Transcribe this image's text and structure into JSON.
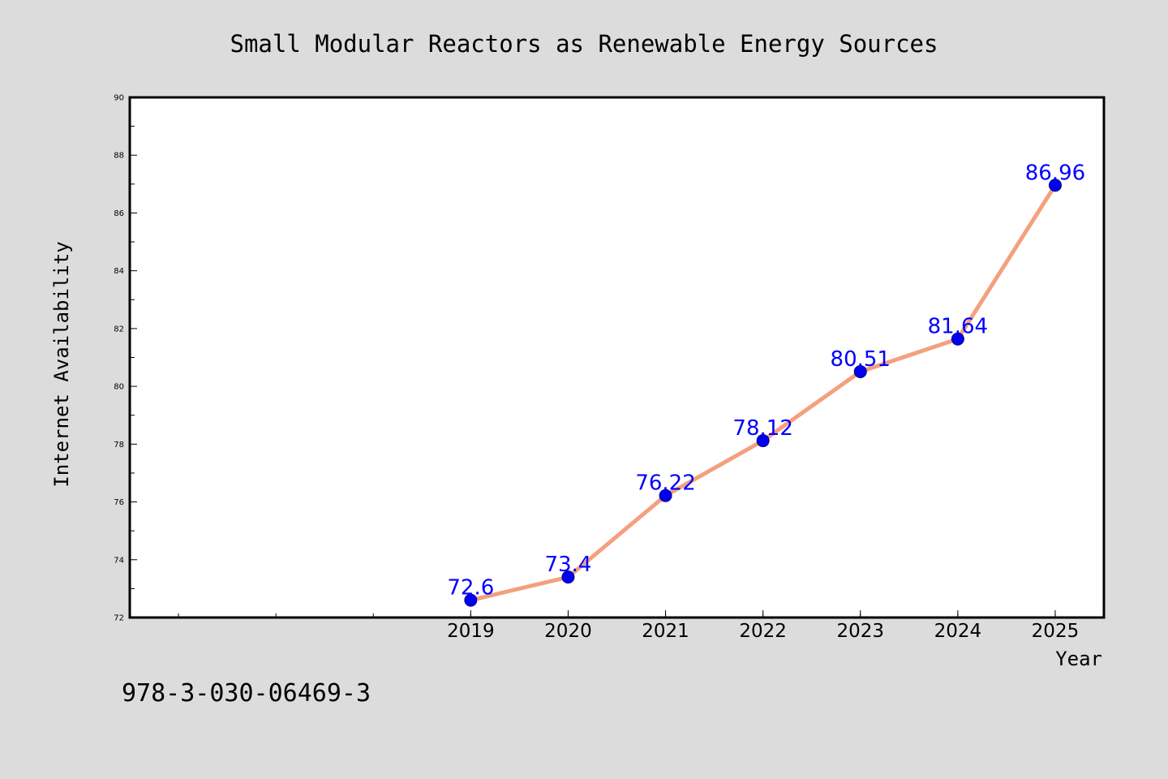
{
  "chart_data": {
    "type": "line",
    "title": "Small Modular Reactors as Renewable Energy Sources",
    "xlabel": "Year",
    "ylabel": "Internet Availability",
    "x": [
      2019,
      2020,
      2021,
      2022,
      2023,
      2024,
      2025
    ],
    "xtick_labels": [
      "2019",
      "2020",
      "2021",
      "2022",
      "2023",
      "2024",
      "2025"
    ],
    "xlim": [
      2015.5,
      2025.5
    ],
    "ylim": [
      72,
      90
    ],
    "yticks": [
      72,
      74,
      76,
      78,
      80,
      82,
      84,
      86,
      88,
      90
    ],
    "series": [
      {
        "values": [
          72.6,
          73.4,
          76.22,
          78.12,
          80.51,
          81.64,
          86.96
        ],
        "labels": [
          "72.6",
          "73.4",
          "76.22",
          "78.12",
          "80.51",
          "81.64",
          "86.96"
        ]
      }
    ],
    "grid": false,
    "legend": "none"
  },
  "footer": {
    "isbn": "978-3-030-06469-3"
  },
  "colors": {
    "background": "#dcdcdc",
    "plot_area": "#ffffff",
    "line": "#f4a07f",
    "marker_fill": "#0000ee",
    "marker_edge": "#00008b",
    "data_label": "#0000ff",
    "frame": "#000000"
  }
}
